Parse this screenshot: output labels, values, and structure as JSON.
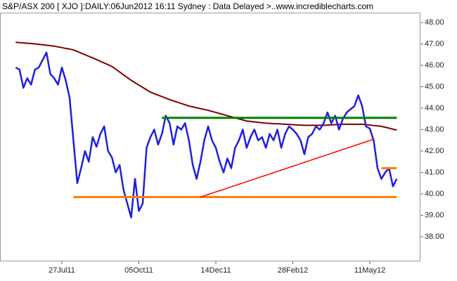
{
  "chart_data": {
    "type": "line",
    "title": "S&P/ASX 200 [ XJO ]:DAILY:06Jun2012 16:11 Sydney : Data Delayed >..www.incrediblecharts.com",
    "categories": [
      null,
      null,
      null,
      null,
      null,
      null,
      null,
      null,
      null,
      null,
      null,
      null,
      "27Jul11",
      null,
      null,
      null,
      null,
      null,
      null,
      null,
      null,
      null,
      null,
      null,
      null,
      null,
      null,
      null,
      null,
      null,
      null,
      null,
      "05Oct11",
      null,
      null,
      null,
      null,
      null,
      null,
      null,
      null,
      null,
      null,
      null,
      null,
      null,
      null,
      null,
      null,
      null,
      null,
      null,
      "14Dec11",
      null,
      null,
      null,
      null,
      null,
      null,
      null,
      null,
      null,
      null,
      null,
      null,
      null,
      null,
      null,
      null,
      null,
      null,
      null,
      "28Feb12",
      null,
      null,
      null,
      null,
      null,
      null,
      null,
      null,
      null,
      null,
      null,
      null,
      null,
      null,
      null,
      null,
      null,
      null,
      null,
      "11May12",
      null,
      null,
      null,
      null,
      null,
      null,
      null
    ],
    "series": [
      {
        "color": "#1f1fe0",
        "values": [
          45.9,
          45.8,
          44.95,
          45.4,
          45.1,
          45.8,
          45.9,
          46.25,
          46.6,
          45.6,
          45.4,
          45.1,
          45.9,
          45.3,
          44.5,
          42.5,
          40.5,
          41.2,
          42.0,
          41.5,
          42.65,
          42.2,
          42.8,
          43.15,
          42.0,
          41.7,
          41.0,
          41.35,
          40.2,
          39.55,
          38.9,
          40.7,
          39.2,
          39.55,
          42.15,
          42.65,
          43.0,
          42.3,
          42.8,
          43.65,
          43.3,
          42.3,
          43.15,
          43.0,
          43.3,
          42.5,
          41.35,
          40.7,
          41.5,
          42.5,
          43.15,
          42.5,
          42.15,
          41.5,
          41.0,
          41.65,
          41.2,
          42.15,
          42.5,
          43.0,
          42.15,
          42.65,
          43.0,
          42.5,
          42.65,
          42.15,
          42.8,
          42.5,
          43.0,
          42.15,
          42.8,
          43.15,
          43.0,
          42.8,
          42.5,
          41.85,
          42.65,
          42.8,
          43.15,
          43.0,
          43.3,
          43.8,
          43.3,
          43.65,
          43.0,
          43.5,
          43.8,
          43.95,
          44.1,
          44.6,
          44.1,
          43.15,
          43.05,
          42.5,
          41.2,
          40.7,
          41.0,
          41.2,
          40.35,
          40.7
        ]
      },
      {
        "color": "#800000",
        "values": [
          47.08,
          47.06,
          47.05,
          47.03,
          47.02,
          47.0,
          46.98,
          46.96,
          46.94,
          46.92,
          46.9,
          46.86,
          46.83,
          46.79,
          46.76,
          46.72,
          46.65,
          46.57,
          46.5,
          46.42,
          46.35,
          46.27,
          46.19,
          46.11,
          46.03,
          45.95,
          45.82,
          45.69,
          45.56,
          45.43,
          45.3,
          45.19,
          45.08,
          44.97,
          44.86,
          44.75,
          44.68,
          44.61,
          44.54,
          44.47,
          44.4,
          44.34,
          44.28,
          44.22,
          44.16,
          44.1,
          44.06,
          44.02,
          43.98,
          43.94,
          43.9,
          43.85,
          43.8,
          43.75,
          43.7,
          43.65,
          43.6,
          43.55,
          43.5,
          43.45,
          43.4,
          43.38,
          43.36,
          43.34,
          43.32,
          43.3,
          43.29,
          43.28,
          43.27,
          43.26,
          43.25,
          43.24,
          43.23,
          43.22,
          43.21,
          43.2,
          43.2,
          43.2,
          43.2,
          43.2,
          43.2,
          43.21,
          43.22,
          43.23,
          43.24,
          43.25,
          43.25,
          43.25,
          43.25,
          43.25,
          43.25,
          43.23,
          43.21,
          43.19,
          43.17,
          43.15,
          43.11,
          43.07,
          43.02,
          42.98
        ]
      },
      {
        "color": "#008000",
        "values": [
          null,
          null,
          null,
          null,
          null,
          null,
          null,
          null,
          null,
          null,
          null,
          null,
          null,
          null,
          null,
          null,
          null,
          null,
          null,
          null,
          null,
          null,
          null,
          null,
          null,
          null,
          null,
          null,
          null,
          null,
          null,
          null,
          null,
          null,
          null,
          null,
          null,
          null,
          43.55,
          43.55,
          43.55,
          43.55,
          43.55,
          43.55,
          43.55,
          43.55,
          43.55,
          43.55,
          43.55,
          43.55,
          43.55,
          43.55,
          43.55,
          43.55,
          43.55,
          43.55,
          43.55,
          43.55,
          43.55,
          43.55,
          43.55,
          43.55,
          43.55,
          43.55,
          43.55,
          43.55,
          43.55,
          43.55,
          43.55,
          43.55,
          43.55,
          43.55,
          43.55,
          43.55,
          43.55,
          43.55,
          43.55,
          43.55,
          43.55,
          43.55,
          43.55,
          43.55,
          43.55,
          43.55,
          43.55,
          43.55,
          43.55,
          43.55,
          43.55,
          43.55,
          43.55,
          43.55,
          43.55,
          43.55,
          43.55,
          43.55,
          43.55,
          43.55,
          43.55,
          43.55
        ]
      },
      {
        "color": "#ff8000",
        "values": [
          null,
          null,
          null,
          null,
          null,
          null,
          null,
          null,
          null,
          null,
          null,
          null,
          null,
          null,
          null,
          39.85,
          39.85,
          39.85,
          39.85,
          39.85,
          39.85,
          39.85,
          39.85,
          39.85,
          39.85,
          39.85,
          39.85,
          39.85,
          39.85,
          39.85,
          39.85,
          39.85,
          39.85,
          39.85,
          39.85,
          39.85,
          39.85,
          39.85,
          39.85,
          39.85,
          39.85,
          39.85,
          39.85,
          39.85,
          39.85,
          39.85,
          39.85,
          39.85,
          39.85,
          39.85,
          39.85,
          39.85,
          39.85,
          39.85,
          39.85,
          39.85,
          39.85,
          39.85,
          39.85,
          39.85,
          39.85,
          39.85,
          39.85,
          39.85,
          39.85,
          39.85,
          39.85,
          39.85,
          39.85,
          39.85,
          39.85,
          39.85,
          39.85,
          39.85,
          39.85,
          39.85,
          39.85,
          39.85,
          39.85,
          39.85,
          39.85,
          39.85,
          39.85,
          39.85,
          39.85,
          39.85,
          39.85,
          39.85,
          39.85,
          39.85,
          39.85,
          39.85,
          39.85,
          39.85,
          39.85,
          39.85,
          39.85,
          39.85,
          39.85,
          39.85
        ]
      },
      {
        "color": "#ff0000",
        "values": [
          null,
          null,
          null,
          null,
          null,
          null,
          null,
          null,
          null,
          null,
          null,
          null,
          null,
          null,
          null,
          null,
          null,
          null,
          null,
          null,
          null,
          null,
          null,
          null,
          null,
          null,
          null,
          null,
          null,
          null,
          null,
          null,
          null,
          null,
          null,
          null,
          null,
          null,
          null,
          null,
          null,
          null,
          null,
          null,
          null,
          null,
          null,
          null,
          39.85,
          39.91,
          39.97,
          40.03,
          40.09,
          40.15,
          40.21,
          40.27,
          40.33,
          40.39,
          40.45,
          40.51,
          40.57,
          40.63,
          40.69,
          40.75,
          40.81,
          40.87,
          40.93,
          40.99,
          41.05,
          41.11,
          41.17,
          41.23,
          41.29,
          41.35,
          41.41,
          41.47,
          41.53,
          41.59,
          41.65,
          41.71,
          41.77,
          41.83,
          41.89,
          41.95,
          42.01,
          42.07,
          42.13,
          42.19,
          42.25,
          42.31,
          42.37,
          42.43,
          42.49,
          42.55,
          null,
          null,
          null,
          null,
          null,
          null
        ]
      },
      {
        "color": "#ff8000",
        "values": [
          null,
          null,
          null,
          null,
          null,
          null,
          null,
          null,
          null,
          null,
          null,
          null,
          null,
          null,
          null,
          null,
          null,
          null,
          null,
          null,
          null,
          null,
          null,
          null,
          null,
          null,
          null,
          null,
          null,
          null,
          null,
          null,
          null,
          null,
          null,
          null,
          null,
          null,
          null,
          null,
          null,
          null,
          null,
          null,
          null,
          null,
          null,
          null,
          null,
          null,
          null,
          null,
          null,
          null,
          null,
          null,
          null,
          null,
          null,
          null,
          null,
          null,
          null,
          null,
          null,
          null,
          null,
          null,
          null,
          null,
          null,
          null,
          null,
          null,
          null,
          null,
          null,
          null,
          null,
          null,
          null,
          null,
          null,
          null,
          null,
          null,
          null,
          null,
          null,
          null,
          null,
          null,
          null,
          null,
          null,
          41.2,
          41.2,
          41.2,
          41.2,
          41.2
        ]
      }
    ],
    "ylim": [
      36.85,
      48.46
    ],
    "yticks": [
      {
        "value": 38,
        "label": "38.00"
      },
      {
        "value": 39,
        "label": "39.00"
      },
      {
        "value": 40,
        "label": "40.00"
      },
      {
        "value": 41,
        "label": "41.00"
      },
      {
        "value": 42,
        "label": "42.00"
      },
      {
        "value": 43,
        "label": "43.00"
      },
      {
        "value": 44,
        "label": "44.00"
      },
      {
        "value": 45,
        "label": "45.00"
      },
      {
        "value": 46,
        "label": "46.00"
      },
      {
        "value": 47,
        "label": "47.00"
      },
      {
        "value": 48,
        "label": "48.00"
      }
    ]
  }
}
